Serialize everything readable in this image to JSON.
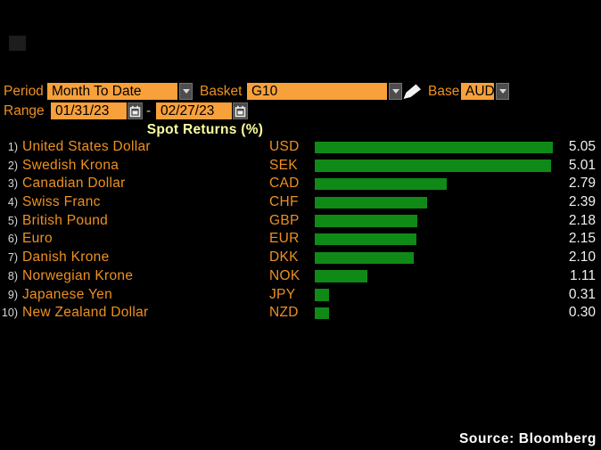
{
  "colors": {
    "background": "#000000",
    "field_orange": "#f8a03a",
    "label_orange": "#ee9020",
    "bar_green": "#108a17",
    "title_yellow": "#fdfda2",
    "value_white": "#f0f0f0",
    "index_grey": "#d8d8d8",
    "button_grey": "#4d4d4d"
  },
  "controls": {
    "period": {
      "label": "Period",
      "value": "Month To Date"
    },
    "basket": {
      "label": "Basket",
      "value": "G10"
    },
    "base": {
      "label": "Base",
      "value": "AUD"
    },
    "range": {
      "label": "Range",
      "start_date": "01/31/23",
      "separator": "-",
      "end_date": "02/27/23"
    }
  },
  "icons": {
    "period_dropdown": "chevron-down",
    "basket_dropdown": "chevron-down",
    "base_dropdown": "chevron-down",
    "edit": "pencil",
    "range_start_calendar": "calendar",
    "range_end_calendar": "calendar"
  },
  "chart_data": {
    "type": "bar",
    "orientation": "horizontal",
    "title": "Spot Returns (%)",
    "xlim": [
      0,
      5.05
    ],
    "max_value": 5.05,
    "bar_color": "#108a17",
    "grid": false,
    "legend": false,
    "categories": [
      "United States Dollar",
      "Swedish Krona",
      "Canadian Dollar",
      "Swiss Franc",
      "British Pound",
      "Euro",
      "Danish Krone",
      "Norwegian Krone",
      "Japanese Yen",
      "New Zealand Dollar"
    ],
    "values": [
      5.05,
      5.01,
      2.79,
      2.39,
      2.18,
      2.15,
      2.1,
      1.11,
      0.31,
      0.3
    ],
    "rows": [
      {
        "index": "1)",
        "name": "United States Dollar",
        "code": "USD",
        "value": 5.05,
        "display": "5.05"
      },
      {
        "index": "2)",
        "name": "Swedish Krona",
        "code": "SEK",
        "value": 5.01,
        "display": "5.01"
      },
      {
        "index": "3)",
        "name": "Canadian Dollar",
        "code": "CAD",
        "value": 2.79,
        "display": "2.79"
      },
      {
        "index": "4)",
        "name": "Swiss Franc",
        "code": "CHF",
        "value": 2.39,
        "display": "2.39"
      },
      {
        "index": "5)",
        "name": "British Pound",
        "code": "GBP",
        "value": 2.18,
        "display": "2.18"
      },
      {
        "index": "6)",
        "name": "Euro",
        "code": "EUR",
        "value": 2.15,
        "display": "2.15"
      },
      {
        "index": "7)",
        "name": "Danish Krone",
        "code": "DKK",
        "value": 2.1,
        "display": "2.10"
      },
      {
        "index": "8)",
        "name": "Norwegian Krone",
        "code": "NOK",
        "value": 1.11,
        "display": "1.11"
      },
      {
        "index": "9)",
        "name": "Japanese Yen",
        "code": "JPY",
        "value": 0.31,
        "display": "0.31"
      },
      {
        "index": "10)",
        "name": "New Zealand Dollar",
        "code": "NZD",
        "value": 0.3,
        "display": "0.30"
      }
    ]
  },
  "footer": {
    "source": "Source: Bloomberg"
  }
}
